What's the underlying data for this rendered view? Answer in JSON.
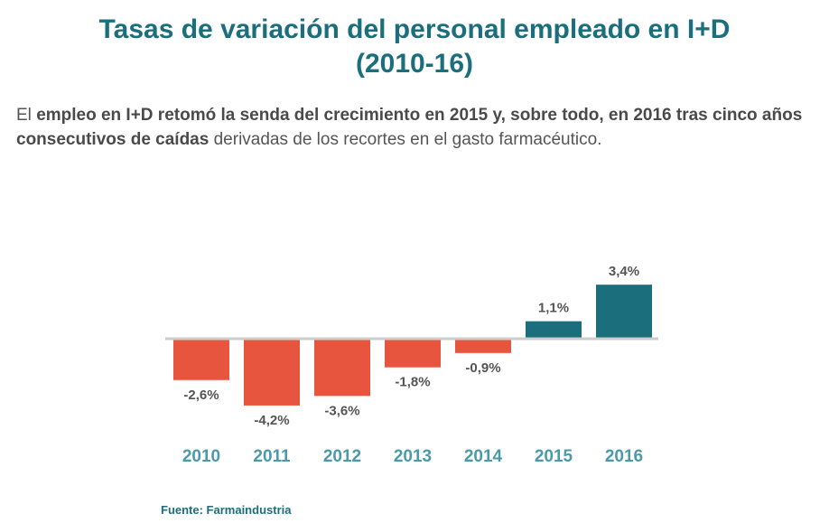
{
  "title_line1": "Tasas de variación del personal empleado en I+D",
  "title_line2": "(2010-16)",
  "subtitle": {
    "part1": "El ",
    "bold1": "empleo en I+D retomó la senda del crecimiento en 2015 y, sobre todo, en 2016 tras cinco años consecutivos de caídas",
    "part2": " derivadas de los recortes en el gasto farmacéutico."
  },
  "source": "Fuente: Farmaindustria",
  "colors": {
    "negative": "#e8553e",
    "positive": "#1b6f7d",
    "axis": "#cccccc",
    "year_label": "#4a9aaa",
    "value_label": "#555555"
  },
  "chart_data": {
    "type": "bar",
    "categories": [
      "2010",
      "2011",
      "2012",
      "2013",
      "2014",
      "2015",
      "2016"
    ],
    "values": [
      -2.6,
      -4.2,
      -3.6,
      -1.8,
      -0.9,
      1.1,
      3.4
    ],
    "value_labels": [
      "-2,6%",
      "-4,2%",
      "-3,6%",
      "-1,8%",
      "-0,9%",
      "1,1%",
      "3,4%"
    ],
    "title": "",
    "xlabel": "",
    "ylabel": "",
    "grid": false
  }
}
